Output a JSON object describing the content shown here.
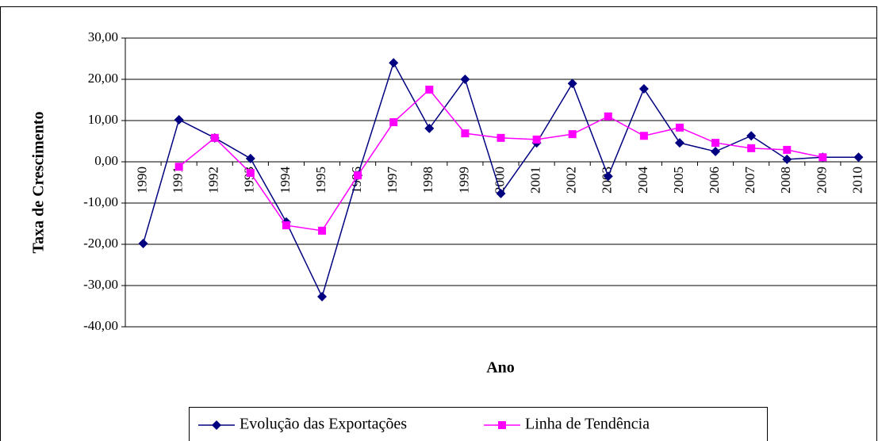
{
  "chart_data": {
    "type": "line",
    "ylabel": "Taxa de Crescimento",
    "xlabel": "Ano",
    "categories": [
      "1990",
      "1991",
      "1992",
      "1993",
      "1994",
      "1995",
      "1996",
      "1997",
      "1998",
      "1999",
      "2000",
      "2001",
      "2002",
      "2003",
      "2004",
      "2005",
      "2006",
      "2007",
      "2008",
      "2009",
      "2010"
    ],
    "series": [
      {
        "name": "Evolução das Exportações",
        "color": "#000080",
        "marker": "diamond",
        "values": [
          -19.8,
          10.2,
          5.8,
          0.8,
          -14.6,
          -32.7,
          -3.3,
          24.0,
          8.1,
          20.0,
          -7.7,
          4.6,
          19.0,
          -3.5,
          17.7,
          4.6,
          2.5,
          6.3,
          0.6,
          1.1,
          1.1
        ]
      },
      {
        "name": "Linha de Tendência",
        "color": "#ff00ff",
        "marker": "square",
        "values": [
          null,
          -1.2,
          5.8,
          -2.7,
          -15.4,
          -16.7,
          -3.3,
          9.6,
          17.5,
          6.9,
          5.8,
          5.4,
          6.7,
          11.0,
          6.3,
          8.3,
          4.6,
          3.3,
          2.9,
          1.1,
          null
        ]
      }
    ],
    "ylim": [
      -40,
      30
    ],
    "yticks": [
      {
        "value": -40,
        "label": "-40,00"
      },
      {
        "value": -30,
        "label": "-30,00"
      },
      {
        "value": -20,
        "label": "-20,00"
      },
      {
        "value": -10,
        "label": "-10,00"
      },
      {
        "value": 0,
        "label": "0,00"
      },
      {
        "value": 10,
        "label": "10,00"
      },
      {
        "value": 20,
        "label": "20,00"
      },
      {
        "value": 30,
        "label": "30,00"
      }
    ],
    "grid": true,
    "legend": "bottom"
  }
}
